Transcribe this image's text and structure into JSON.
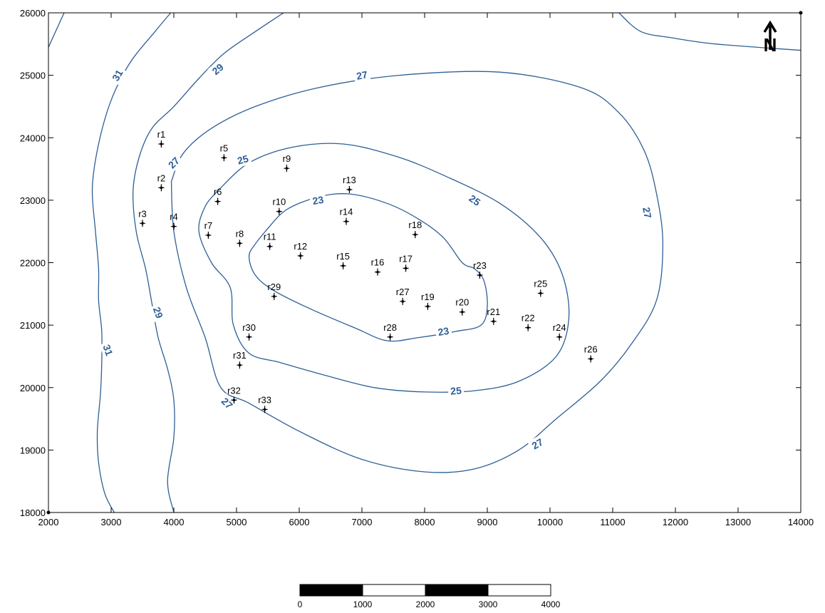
{
  "map": {
    "x_ticks": [
      "2000",
      "3000",
      "4000",
      "5000",
      "6000",
      "7000",
      "8000",
      "9000",
      "10000",
      "11000",
      "12000",
      "13000",
      "14000"
    ],
    "y_ticks": [
      "18000",
      "19000",
      "20000",
      "21000",
      "22000",
      "23000",
      "24000",
      "25000",
      "26000"
    ],
    "x_range": [
      2000,
      14000
    ],
    "y_range": [
      18000,
      26000
    ],
    "contour_color": "#2e5f95",
    "wells": [
      {
        "name": "r1",
        "x": 3800,
        "y": 23900
      },
      {
        "name": "r2",
        "x": 3800,
        "y": 23200
      },
      {
        "name": "r3",
        "x": 3500,
        "y": 22630
      },
      {
        "name": "r4",
        "x": 4000,
        "y": 22580
      },
      {
        "name": "r5",
        "x": 4800,
        "y": 23680
      },
      {
        "name": "r6",
        "x": 4700,
        "y": 22980
      },
      {
        "name": "r7",
        "x": 4550,
        "y": 22440
      },
      {
        "name": "r8",
        "x": 5050,
        "y": 22310
      },
      {
        "name": "r9",
        "x": 5800,
        "y": 23510
      },
      {
        "name": "r10",
        "x": 5680,
        "y": 22820
      },
      {
        "name": "r11",
        "x": 5530,
        "y": 22260
      },
      {
        "name": "r12",
        "x": 6020,
        "y": 22110
      },
      {
        "name": "r13",
        "x": 6800,
        "y": 23170
      },
      {
        "name": "r14",
        "x": 6750,
        "y": 22660
      },
      {
        "name": "r15",
        "x": 6700,
        "y": 21950
      },
      {
        "name": "r16",
        "x": 7250,
        "y": 21850
      },
      {
        "name": "r17",
        "x": 7700,
        "y": 21910
      },
      {
        "name": "r18",
        "x": 7850,
        "y": 22450
      },
      {
        "name": "r19",
        "x": 8050,
        "y": 21300
      },
      {
        "name": "r20",
        "x": 8600,
        "y": 21210
      },
      {
        "name": "r21",
        "x": 9100,
        "y": 21060
      },
      {
        "name": "r22",
        "x": 9650,
        "y": 20960
      },
      {
        "name": "r23",
        "x": 8880,
        "y": 21800
      },
      {
        "name": "r24",
        "x": 10150,
        "y": 20810
      },
      {
        "name": "r25",
        "x": 9850,
        "y": 21510
      },
      {
        "name": "r26",
        "x": 10650,
        "y": 20460
      },
      {
        "name": "r27",
        "x": 7650,
        "y": 21380
      },
      {
        "name": "r28",
        "x": 7450,
        "y": 20810
      },
      {
        "name": "r29",
        "x": 5600,
        "y": 21460
      },
      {
        "name": "r30",
        "x": 5200,
        "y": 20810
      },
      {
        "name": "r31",
        "x": 5050,
        "y": 20360
      },
      {
        "name": "r32",
        "x": 4960,
        "y": 19800
      },
      {
        "name": "r33",
        "x": 5450,
        "y": 19650
      }
    ],
    "contours": [
      {
        "value": "31",
        "lines": [
          [
            [
              2000,
              25450
            ],
            [
              2250,
              26000
            ]
          ],
          [
            [
              3950,
              26000
            ],
            [
              3700,
              25700
            ],
            [
              3300,
              25200
            ],
            [
              3000,
              24600
            ],
            [
              2800,
              23900
            ],
            [
              2700,
              23200
            ],
            [
              2750,
              22500
            ],
            [
              2800,
              21900
            ],
            [
              2800,
              21400
            ],
            [
              2850,
              20900
            ],
            [
              2850,
              20400
            ],
            [
              2830,
              19900
            ],
            [
              2780,
              19300
            ],
            [
              2800,
              18800
            ],
            [
              2900,
              18300
            ],
            [
              3050,
              18000
            ]
          ]
        ],
        "labels": [
          {
            "x": 3100,
            "y": 25000,
            "rot": -60
          },
          {
            "x": 2950,
            "y": 20600,
            "rot": 70
          }
        ]
      },
      {
        "value": "29",
        "lines": [
          [
            [
              5750,
              26000
            ],
            [
              5300,
              25700
            ],
            [
              4800,
              25350
            ],
            [
              4400,
              24950
            ],
            [
              4000,
              24500
            ],
            [
              3650,
              24150
            ],
            [
              3450,
              23700
            ],
            [
              3350,
              23150
            ],
            [
              3400,
              22500
            ],
            [
              3550,
              21900
            ],
            [
              3650,
              21350
            ],
            [
              3750,
              20800
            ],
            [
              3900,
              20300
            ],
            [
              4000,
              19800
            ],
            [
              4000,
              19200
            ],
            [
              3900,
              18500
            ],
            [
              4000,
              18000
            ]
          ]
        ],
        "labels": [
          {
            "x": 4700,
            "y": 25100,
            "rot": -40
          },
          {
            "x": 3750,
            "y": 21200,
            "rot": 70
          }
        ]
      },
      {
        "value": "27",
        "lines": [
          [
            [
              3960,
              23300
            ],
            [
              4150,
              23750
            ],
            [
              4600,
              24150
            ],
            [
              5300,
              24500
            ],
            [
              6300,
              24800
            ],
            [
              7600,
              25000
            ],
            [
              9200,
              25050
            ],
            [
              10500,
              24800
            ],
            [
              11100,
              24400
            ],
            [
              11500,
              23800
            ],
            [
              11700,
              23100
            ],
            [
              11800,
              22300
            ],
            [
              11700,
              21400
            ],
            [
              11300,
              20700
            ],
            [
              10800,
              20100
            ],
            [
              10100,
              19500
            ],
            [
              9500,
              19000
            ],
            [
              8800,
              18700
            ],
            [
              8000,
              18650
            ],
            [
              7000,
              18850
            ],
            [
              6000,
              19300
            ],
            [
              5200,
              19750
            ],
            [
              4750,
              20000
            ],
            [
              4500,
              20800
            ],
            [
              4200,
              21600
            ],
            [
              4000,
              22500
            ],
            [
              3960,
              23300
            ]
          ],
          [
            [
              11100,
              26000
            ],
            [
              11450,
              25700
            ],
            [
              11950,
              25600
            ],
            [
              12650,
              25500
            ],
            [
              14000,
              25400
            ]
          ]
        ],
        "labels": [
          {
            "x": 7000,
            "y": 25000,
            "rot": -10
          },
          {
            "x": 11550,
            "y": 22800,
            "rot": 80
          },
          {
            "x": 9800,
            "y": 19100,
            "rot": -30
          },
          {
            "x": 4000,
            "y": 23600,
            "rot": -45
          },
          {
            "x": 4850,
            "y": 19750,
            "rot": 45
          }
        ]
      },
      {
        "value": "25",
        "lines": [
          [
            [
              4700,
              23150
            ],
            [
              5200,
              23600
            ],
            [
              5900,
              23850
            ],
            [
              6700,
              23900
            ],
            [
              7550,
              23700
            ],
            [
              8300,
              23400
            ],
            [
              9200,
              22950
            ],
            [
              9850,
              22400
            ],
            [
              10200,
              21800
            ],
            [
              10300,
              21100
            ],
            [
              10100,
              20500
            ],
            [
              9500,
              20100
            ],
            [
              8800,
              19950
            ],
            [
              8000,
              19930
            ],
            [
              7200,
              20000
            ],
            [
              6400,
              20200
            ],
            [
              5700,
              20400
            ],
            [
              5200,
              20550
            ],
            [
              4950,
              21000
            ],
            [
              4900,
              21600
            ],
            [
              4600,
              22000
            ],
            [
              4400,
              22500
            ],
            [
              4500,
              22900
            ],
            [
              4700,
              23150
            ]
          ]
        ],
        "labels": [
          {
            "x": 5100,
            "y": 23650,
            "rot": -15
          },
          {
            "x": 8800,
            "y": 23000,
            "rot": 35
          },
          {
            "x": 8500,
            "y": 19950,
            "rot": -5
          }
        ]
      },
      {
        "value": "23",
        "lines": [
          [
            [
              5500,
              22550
            ],
            [
              5800,
              22850
            ],
            [
              6300,
              23050
            ],
            [
              6800,
              23100
            ],
            [
              7400,
              22950
            ],
            [
              7900,
              22700
            ],
            [
              8300,
              22400
            ],
            [
              8600,
              22000
            ],
            [
              8800,
              21900
            ],
            [
              8950,
              21700
            ],
            [
              9000,
              21300
            ],
            [
              8900,
              21000
            ],
            [
              8500,
              20900
            ],
            [
              7900,
              20800
            ],
            [
              7400,
              20750
            ],
            [
              6900,
              20950
            ],
            [
              6200,
              21250
            ],
            [
              5600,
              21550
            ],
            [
              5300,
              21800
            ],
            [
              5200,
              22100
            ],
            [
              5300,
              22300
            ],
            [
              5500,
              22550
            ]
          ]
        ],
        "labels": [
          {
            "x": 6300,
            "y": 23000,
            "rot": -10
          },
          {
            "x": 8300,
            "y": 20900,
            "rot": -10
          }
        ]
      }
    ],
    "north_arrow": {
      "label": "N"
    },
    "scale_bar": {
      "ticks": [
        "0",
        "1000",
        "2000",
        "3000",
        "4000"
      ]
    }
  }
}
